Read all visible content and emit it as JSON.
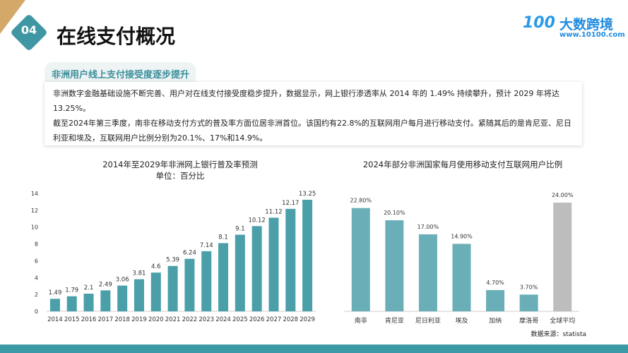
{
  "header": {
    "section_number": "04",
    "title": "在线支付概况",
    "logo_text": "大数跨境",
    "logo_url": "www.10100.com",
    "logo_mark": "100"
  },
  "subheader": "非洲用户线上支付接受度逐步提升",
  "paragraphs": [
    "非洲数字金融基础设施不断完善、用户对在线支付接受度稳步提升，数据显示，网上银行渗透率从 2014 年的 1.49% 持续攀升，预计 2029 年将达 13.25%。",
    "截至2024年第三季度，南非在移动支付方式的普及率方面位居非洲首位。该国约有22.8%的互联网用户每月进行移动支付。紧随其后的是肯尼亚、尼日利亚和埃及，互联网用户比例分别为20.1%、17%和14.9%。"
  ],
  "source": "数据来源：statista",
  "colors": {
    "accent": "#3f97a3",
    "bar_left": "#4a9fa9",
    "bar_right": "#6aafb7",
    "bar_average": "#bdbdbd",
    "corner": "#d4a868"
  },
  "chart_data": [
    {
      "type": "bar",
      "title": "2014年至2029年非洲网上银行普及率预测",
      "subtitle": "单位：百分比",
      "categories": [
        "2014",
        "2015",
        "2016",
        "2017",
        "2018",
        "2019",
        "2020",
        "2021",
        "2022",
        "2023",
        "2024",
        "2025",
        "2026",
        "2027",
        "2028",
        "2029"
      ],
      "values": [
        1.49,
        1.79,
        2.1,
        2.49,
        3.06,
        3.81,
        4.6,
        5.39,
        6.24,
        7.14,
        8.1,
        9.1,
        10.12,
        11.12,
        12.17,
        13.25
      ],
      "ylim": [
        0,
        14
      ],
      "yticks": [
        0,
        2,
        4,
        6,
        8,
        10,
        12,
        14
      ],
      "grid": false
    },
    {
      "type": "bar",
      "title": "2024年部分非洲国家每月使用移动支付互联网用户比例",
      "categories": [
        "南非",
        "肯尼亚",
        "尼日利亚",
        "埃及",
        "加纳",
        "摩洛哥",
        "全球平均"
      ],
      "values": [
        22.8,
        20.1,
        17.0,
        14.9,
        4.7,
        3.7,
        24.0
      ],
      "labels": [
        "22.80%",
        "20.10%",
        "17.00%",
        "14.90%",
        "4.70%",
        "3.70%",
        "24.00%"
      ],
      "ylim": [
        0,
        24
      ],
      "grid": false
    }
  ]
}
